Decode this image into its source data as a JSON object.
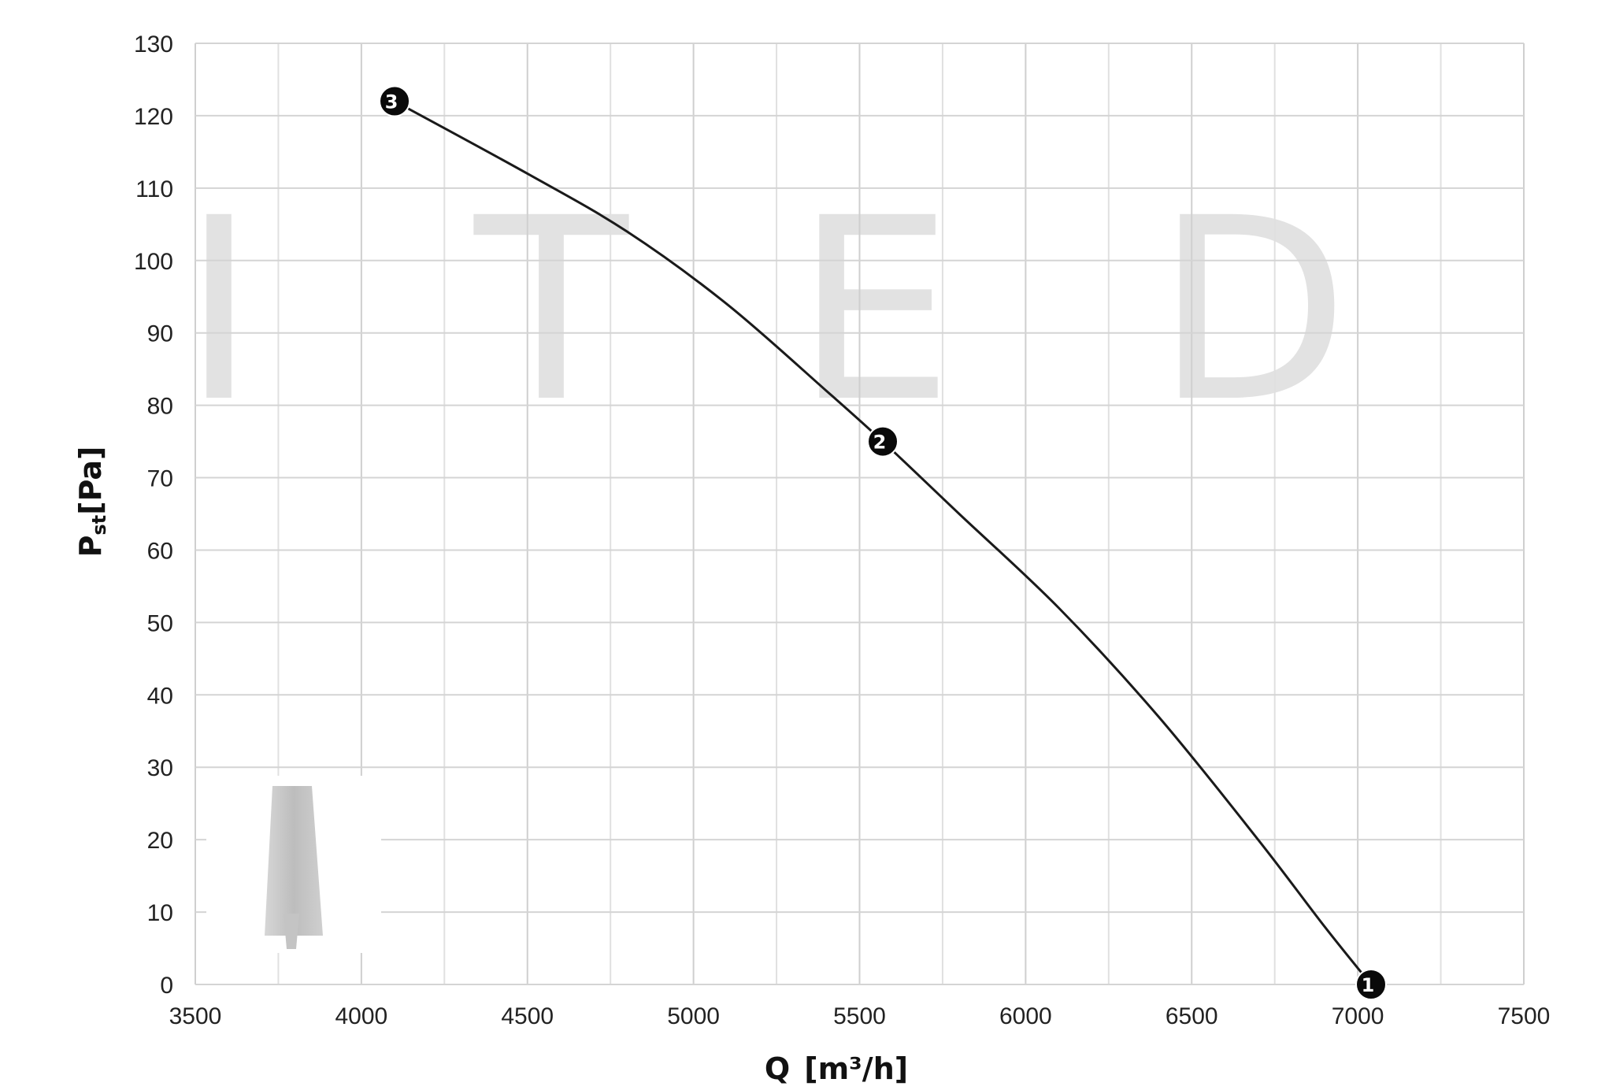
{
  "chart_data": {
    "type": "line",
    "xlabel_main": "Q",
    "xlabel_unit": "[m³/h]",
    "ylabel_main": "P",
    "ylabel_sub": "st",
    "ylabel_unit": "[Pa]",
    "xlim": [
      3500,
      7500
    ],
    "ylim": [
      0,
      130
    ],
    "xticks": [
      3500,
      4000,
      4500,
      5000,
      5500,
      6000,
      6500,
      7000,
      7500
    ],
    "yticks": [
      0,
      10,
      20,
      30,
      40,
      50,
      60,
      70,
      80,
      90,
      100,
      110,
      120,
      130
    ],
    "grid": true,
    "series": [
      {
        "x": [
          4100,
          4500,
          4800,
          5100,
          5400,
          5570,
          5800,
          6100,
          6400,
          6700,
          6900,
          7040
        ],
        "y": [
          122,
          112,
          104,
          94,
          82,
          75,
          65,
          52,
          37,
          20,
          8,
          0
        ]
      }
    ],
    "points": [
      {
        "label": "1",
        "x": 7040,
        "y": 0
      },
      {
        "label": "2",
        "x": 5570,
        "y": 75
      },
      {
        "label": "3",
        "x": 4100,
        "y": 122
      }
    ],
    "watermark": [
      "I",
      "T",
      "E",
      "D"
    ]
  }
}
